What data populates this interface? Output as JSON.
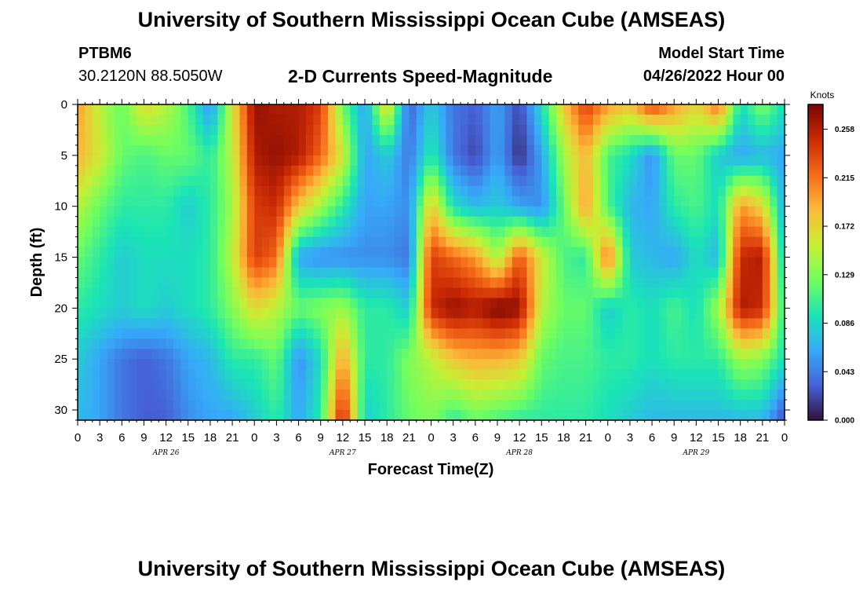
{
  "header": {
    "title": "University of Southern Mississippi Ocean Cube (AMSEAS)",
    "station": "PTBM6",
    "coordinates": "30.2120N  88.5050W",
    "subtitle": "2-D Currents Speed-Magnitude",
    "model_start_label": "Model Start Time",
    "model_start_value": "04/26/2022 Hour 00"
  },
  "footer": {
    "title": "University of Southern Mississippi Ocean Cube (AMSEAS)"
  },
  "chart_data": {
    "type": "heatmap",
    "xlabel": "Forecast Time(Z)",
    "ylabel": "Depth (ft)",
    "xlim": [
      0,
      96
    ],
    "ylim": [
      0,
      31
    ],
    "y_inverted": true,
    "x_tick_labels": [
      "0",
      "3",
      "6",
      "9",
      "12",
      "15",
      "18",
      "21",
      "0",
      "3",
      "6",
      "9",
      "12",
      "15",
      "18",
      "21",
      "0",
      "3",
      "6",
      "9",
      "12",
      "15",
      "18",
      "21",
      "0",
      "3",
      "6",
      "9",
      "12",
      "15",
      "18",
      "21",
      "0"
    ],
    "y_ticks": [
      0,
      5,
      10,
      15,
      20,
      25,
      30
    ],
    "day_labels": [
      "APR 26",
      "APR 27",
      "APR 28",
      "APR 29"
    ],
    "colorbar": {
      "unit": "Knots",
      "min": 0.0,
      "max": 0.28,
      "ticks": [
        "0.000",
        "0.043",
        "0.086",
        "0.129",
        "0.172",
        "0.215",
        "0.258"
      ],
      "colormap": [
        "#30123b",
        "#4662d7",
        "#36aaf9",
        "#1ae4b6",
        "#72fe5e",
        "#c8ef34",
        "#faba39",
        "#f66b19",
        "#cb2a04",
        "#7a0403"
      ]
    },
    "depths": [
      0,
      5,
      10,
      15,
      20,
      25,
      31
    ],
    "times": [
      0,
      3,
      6,
      9,
      12,
      15,
      18,
      21,
      24,
      27,
      30,
      33,
      36,
      39,
      42,
      45,
      48,
      51,
      54,
      57,
      60,
      63,
      66,
      69,
      72,
      75,
      78,
      81,
      84,
      87,
      90,
      93,
      96
    ],
    "speeds": [
      [
        0.2,
        0.15,
        0.12,
        0.17,
        0.15,
        0.11,
        0.05,
        0.16,
        0.27,
        0.26,
        0.26,
        0.24,
        0.12,
        0.06,
        0.18,
        0.03,
        0.08,
        0.04,
        0.03,
        0.06,
        0.02,
        0.09,
        0.18,
        0.24,
        0.2,
        0.18,
        0.24,
        0.2,
        0.17,
        0.22,
        0.09,
        0.13,
        0.09
      ],
      [
        0.19,
        0.16,
        0.12,
        0.11,
        0.12,
        0.12,
        0.1,
        0.15,
        0.26,
        0.27,
        0.26,
        0.22,
        0.16,
        0.06,
        0.08,
        0.04,
        0.1,
        0.04,
        0.02,
        0.06,
        0.01,
        0.06,
        0.14,
        0.19,
        0.11,
        0.09,
        0.05,
        0.12,
        0.12,
        0.08,
        0.06,
        0.07,
        0.06
      ],
      [
        0.15,
        0.12,
        0.1,
        0.1,
        0.1,
        0.08,
        0.1,
        0.14,
        0.24,
        0.25,
        0.18,
        0.14,
        0.1,
        0.06,
        0.06,
        0.05,
        0.18,
        0.09,
        0.07,
        0.08,
        0.06,
        0.05,
        0.12,
        0.2,
        0.11,
        0.07,
        0.06,
        0.1,
        0.11,
        0.09,
        0.2,
        0.17,
        0.06
      ],
      [
        0.12,
        0.1,
        0.08,
        0.09,
        0.09,
        0.09,
        0.1,
        0.15,
        0.24,
        0.22,
        0.06,
        0.05,
        0.05,
        0.05,
        0.05,
        0.04,
        0.24,
        0.22,
        0.2,
        0.14,
        0.23,
        0.16,
        0.11,
        0.1,
        0.22,
        0.08,
        0.07,
        0.06,
        0.09,
        0.07,
        0.25,
        0.26,
        0.07
      ],
      [
        0.1,
        0.09,
        0.08,
        0.09,
        0.08,
        0.09,
        0.1,
        0.13,
        0.17,
        0.15,
        0.12,
        0.13,
        0.14,
        0.1,
        0.1,
        0.08,
        0.25,
        0.27,
        0.26,
        0.28,
        0.27,
        0.15,
        0.12,
        0.12,
        0.08,
        0.1,
        0.09,
        0.11,
        0.09,
        0.14,
        0.26,
        0.25,
        0.09
      ],
      [
        0.08,
        0.06,
        0.04,
        0.03,
        0.04,
        0.06,
        0.07,
        0.1,
        0.1,
        0.12,
        0.05,
        0.09,
        0.2,
        0.1,
        0.1,
        0.13,
        0.15,
        0.18,
        0.19,
        0.19,
        0.18,
        0.12,
        0.11,
        0.11,
        0.1,
        0.1,
        0.09,
        0.1,
        0.1,
        0.1,
        0.14,
        0.13,
        0.09
      ],
      [
        0.07,
        0.06,
        0.04,
        0.03,
        0.03,
        0.05,
        0.06,
        0.06,
        0.08,
        0.1,
        0.06,
        0.1,
        0.26,
        0.08,
        0.1,
        0.12,
        0.13,
        0.1,
        0.12,
        0.11,
        0.1,
        0.1,
        0.1,
        0.1,
        0.09,
        0.08,
        0.07,
        0.07,
        0.07,
        0.07,
        0.07,
        0.07,
        0.02
      ]
    ]
  }
}
